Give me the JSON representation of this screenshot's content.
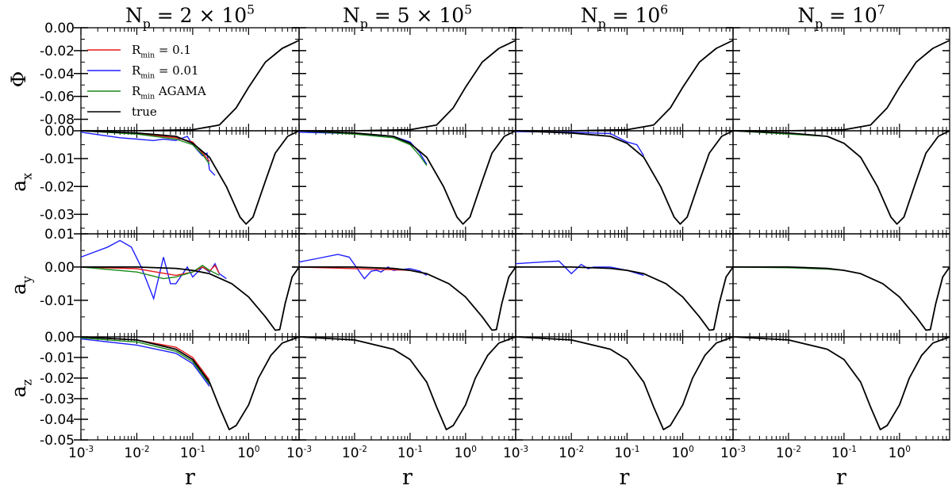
{
  "figure": {
    "column_titles": [
      "N_p = 2 × 10^5",
      "N_p = 5 × 10^5",
      "N_p = 10^6",
      "N_p = 10^7"
    ],
    "row_labels": [
      "Φ",
      "a_x",
      "a_y",
      "a_z"
    ],
    "xlabel": "r"
  },
  "chart_data": {
    "type": "line",
    "xscale": "log",
    "xlim": [
      0.001,
      8
    ],
    "xticks": [
      {
        "value": 0.001,
        "label": "10^-3"
      },
      {
        "value": 0.01,
        "label": "10^-2"
      },
      {
        "value": 0.1,
        "label": "10^-1"
      },
      {
        "value": 1,
        "label": "10^0"
      }
    ],
    "legend": {
      "placement": "upper-left of first panel",
      "entries": [
        {
          "label": "R_min = 0.1",
          "color": "#e41a1c"
        },
        {
          "label": "R_min = 0.01",
          "color": "#1f1fff"
        },
        {
          "label": "R_min AGAMA",
          "color": "#1a8a1a"
        },
        {
          "label": "true",
          "color": "#000000"
        }
      ]
    },
    "rows": [
      {
        "name": "Φ",
        "ylim": [
          -0.09,
          0.0
        ],
        "yticks": [
          "0.00",
          "-0.02",
          "-0.04",
          "-0.06",
          "-0.08"
        ],
        "ytick_values": [
          0.0,
          -0.02,
          -0.04,
          -0.06,
          -0.08
        ]
      },
      {
        "name": "a_x",
        "ylim": [
          -0.037,
          0.0
        ],
        "yticks": [
          "0.00",
          "-0.01",
          "-0.02",
          "-0.03"
        ],
        "ytick_values": [
          0.0,
          -0.01,
          -0.02,
          -0.03
        ]
      },
      {
        "name": "a_y",
        "ylim": [
          -0.021,
          0.01
        ],
        "yticks": [
          "0.01",
          "0.00",
          "-0.01"
        ],
        "ytick_values": [
          0.01,
          0.0,
          -0.01
        ]
      },
      {
        "name": "a_z",
        "ylim": [
          -0.05,
          0.0
        ],
        "yticks": [
          "0.00",
          "-0.01",
          "-0.02",
          "-0.03",
          "-0.04",
          "-0.05"
        ],
        "ytick_values": [
          0.0,
          -0.01,
          -0.02,
          -0.03,
          -0.04,
          -0.05
        ]
      }
    ],
    "true_curves": {
      "phi": {
        "x": [
          0.001,
          0.01,
          0.1,
          0.3,
          0.6,
          1.0,
          2.0,
          4.0,
          8.0
        ],
        "y": [
          -0.09,
          -0.09,
          -0.089,
          -0.085,
          -0.07,
          -0.052,
          -0.03,
          -0.018,
          -0.011
        ]
      },
      "ax": {
        "x": [
          0.001,
          0.01,
          0.05,
          0.1,
          0.2,
          0.4,
          0.7,
          0.9,
          1.2,
          2.0,
          3.0,
          5.0,
          8.0
        ],
        "y": [
          0.0,
          -0.0008,
          -0.002,
          -0.0045,
          -0.0095,
          -0.02,
          -0.031,
          -0.0335,
          -0.031,
          -0.018,
          -0.008,
          -0.002,
          0.0
        ]
      },
      "ay": {
        "x": [
          0.001,
          0.01,
          0.05,
          0.1,
          0.2,
          0.5,
          1.0,
          2.0,
          3.0,
          3.6,
          4.5,
          6.0,
          8.0
        ],
        "y": [
          0.0,
          0.0,
          -0.0004,
          -0.001,
          -0.002,
          -0.005,
          -0.009,
          -0.015,
          -0.019,
          -0.0188,
          -0.011,
          -0.003,
          0.0
        ]
      },
      "az": {
        "x": [
          0.001,
          0.01,
          0.05,
          0.1,
          0.2,
          0.3,
          0.45,
          0.6,
          1.0,
          1.5,
          2.5,
          4.0,
          8.0
        ],
        "y": [
          0.0,
          -0.0015,
          -0.006,
          -0.011,
          -0.022,
          -0.034,
          -0.045,
          -0.043,
          -0.033,
          -0.02,
          -0.009,
          -0.003,
          0.0
        ]
      }
    },
    "noisy_series": [
      {
        "col": 0,
        "row": "ax",
        "color": "#1f1fff",
        "x": [
          0.001,
          0.005,
          0.01,
          0.02,
          0.03,
          0.05,
          0.08,
          0.1,
          0.15,
          0.18,
          0.2,
          0.25
        ],
        "y": [
          -0.0005,
          -0.0025,
          -0.003,
          -0.0035,
          -0.003,
          -0.0035,
          -0.002,
          -0.005,
          -0.009,
          -0.008,
          -0.014,
          -0.016
        ]
      },
      {
        "col": 0,
        "row": "ax",
        "color": "#e41a1c",
        "x": [
          0.001,
          0.01,
          0.05,
          0.1,
          0.15,
          0.2
        ],
        "y": [
          0.0,
          -0.001,
          -0.0025,
          -0.004,
          -0.008,
          -0.011
        ]
      },
      {
        "col": 0,
        "row": "ax",
        "color": "#1a8a1a",
        "x": [
          0.001,
          0.01,
          0.05,
          0.1,
          0.15,
          0.2
        ],
        "y": [
          0.0,
          -0.0012,
          -0.003,
          -0.005,
          -0.0085,
          -0.012
        ]
      },
      {
        "col": 0,
        "row": "ay",
        "color": "#1f1fff",
        "x": [
          0.001,
          0.003,
          0.005,
          0.008,
          0.012,
          0.02,
          0.03,
          0.04,
          0.05,
          0.08,
          0.1,
          0.15,
          0.2,
          0.25,
          0.3,
          0.4
        ],
        "y": [
          0.003,
          0.006,
          0.008,
          0.006,
          0.0,
          -0.0095,
          0.003,
          -0.005,
          -0.005,
          0.0,
          -0.003,
          0.0,
          -0.0015,
          0.001,
          -0.002,
          -0.0035
        ]
      },
      {
        "col": 0,
        "row": "ay",
        "color": "#e41a1c",
        "x": [
          0.001,
          0.01,
          0.05,
          0.1,
          0.15,
          0.2,
          0.25,
          0.3
        ],
        "y": [
          0.0,
          -0.0005,
          -0.0025,
          -0.0015,
          0.0,
          -0.0012,
          0.0005,
          -0.002
        ]
      },
      {
        "col": 0,
        "row": "ay",
        "color": "#1a8a1a",
        "x": [
          0.001,
          0.01,
          0.03,
          0.05,
          0.1,
          0.15,
          0.2,
          0.3
        ],
        "y": [
          0.0,
          -0.0015,
          -0.0035,
          -0.003,
          -0.0015,
          0.0005,
          -0.001,
          -0.0025
        ]
      },
      {
        "col": 0,
        "row": "az",
        "color": "#1f1fff",
        "x": [
          0.001,
          0.01,
          0.05,
          0.1,
          0.2
        ],
        "y": [
          -0.001,
          -0.004,
          -0.008,
          -0.013,
          -0.024
        ]
      },
      {
        "col": 0,
        "row": "az",
        "color": "#e41a1c",
        "x": [
          0.001,
          0.01,
          0.05,
          0.1,
          0.2
        ],
        "y": [
          0.0,
          -0.0015,
          -0.005,
          -0.01,
          -0.021
        ]
      },
      {
        "col": 0,
        "row": "az",
        "color": "#1a8a1a",
        "x": [
          0.001,
          0.01,
          0.05,
          0.1,
          0.2
        ],
        "y": [
          -0.0005,
          -0.0025,
          -0.007,
          -0.012,
          -0.023
        ]
      },
      {
        "col": 1,
        "row": "ax",
        "color": "#1f1fff",
        "x": [
          0.001,
          0.01,
          0.05,
          0.1,
          0.15,
          0.2
        ],
        "y": [
          -0.0005,
          -0.001,
          -0.002,
          -0.004,
          -0.008,
          -0.012
        ]
      },
      {
        "col": 1,
        "row": "ax",
        "color": "#1a8a1a",
        "x": [
          0.001,
          0.01,
          0.05,
          0.1,
          0.15,
          0.2
        ],
        "y": [
          0.0,
          -0.0012,
          -0.0025,
          -0.005,
          -0.009,
          -0.0125
        ]
      },
      {
        "col": 1,
        "row": "ay",
        "color": "#1f1fff",
        "x": [
          0.001,
          0.002,
          0.005,
          0.008,
          0.015,
          0.02,
          0.025,
          0.03,
          0.04,
          0.05,
          0.1,
          0.15,
          0.2
        ],
        "y": [
          0.0015,
          0.0025,
          0.0038,
          0.003,
          -0.0035,
          -0.0012,
          -0.001,
          -0.0015,
          0.0,
          -0.001,
          -0.0005,
          -0.0012,
          -0.0025
        ]
      },
      {
        "col": 1,
        "row": "ay",
        "color": "#e41a1c",
        "x": [
          0.001,
          0.05,
          0.1,
          0.2
        ],
        "y": [
          0.0,
          -0.0008,
          -0.001,
          -0.002
        ]
      },
      {
        "col": 2,
        "row": "ax",
        "color": "#1f1fff",
        "x": [
          0.001,
          0.01,
          0.05,
          0.1,
          0.15,
          0.2
        ],
        "y": [
          -0.0003,
          -0.0005,
          -0.001,
          -0.004,
          -0.005,
          -0.009
        ]
      },
      {
        "col": 2,
        "row": "ay",
        "color": "#1f1fff",
        "x": [
          0.001,
          0.003,
          0.006,
          0.01,
          0.015,
          0.02,
          0.025,
          0.05,
          0.1,
          0.2
        ],
        "y": [
          0.001,
          0.0015,
          0.0018,
          -0.002,
          0.0008,
          -0.0005,
          0.0,
          0.0,
          -0.001,
          -0.0025
        ]
      },
      {
        "col": 3,
        "row": "ax",
        "color": "#1a8a1a",
        "x": [
          0.001,
          0.05,
          0.1,
          0.2
        ],
        "y": [
          0.0,
          -0.002,
          -0.0045,
          -0.0095
        ]
      },
      {
        "col": 3,
        "row": "ay",
        "color": "#1a8a1a",
        "x": [
          0.001,
          0.01,
          0.05,
          0.1
        ],
        "y": [
          0.0,
          -0.0002,
          -0.0006,
          -0.001
        ]
      }
    ]
  }
}
